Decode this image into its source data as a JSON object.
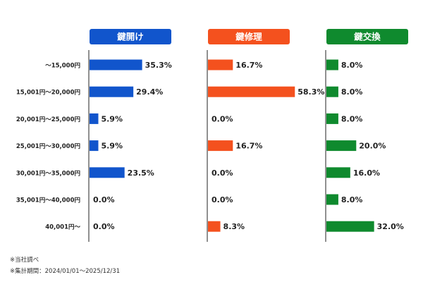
{
  "chart_data": {
    "type": "bar",
    "orientation": "horizontal",
    "categories": [
      "〜15,000円",
      "15,001円〜20,000円",
      "20,001円〜25,000円",
      "25,001円〜30,000円",
      "30,001円〜35,000円",
      "35,001円〜40,000円",
      "40,001円〜"
    ],
    "series": [
      {
        "name": "鍵開け",
        "color": "#1155cc",
        "values": [
          35.3,
          29.4,
          5.9,
          5.9,
          23.5,
          0.0,
          0.0
        ]
      },
      {
        "name": "鍵修理",
        "color": "#f4511e",
        "values": [
          16.7,
          58.3,
          0.0,
          16.7,
          0.0,
          0.0,
          8.3
        ]
      },
      {
        "name": "鍵交換",
        "color": "#0f8a2e",
        "values": [
          8.0,
          8.0,
          8.0,
          20.0,
          16.0,
          8.0,
          32.0
        ]
      }
    ],
    "value_unit": "%",
    "xlim": [
      0,
      70
    ],
    "grid": false,
    "legend": "panel-headers"
  },
  "footnotes": {
    "source": "※当社調べ",
    "period": "※集計期間：2024/01/01〜2025/12/31"
  }
}
